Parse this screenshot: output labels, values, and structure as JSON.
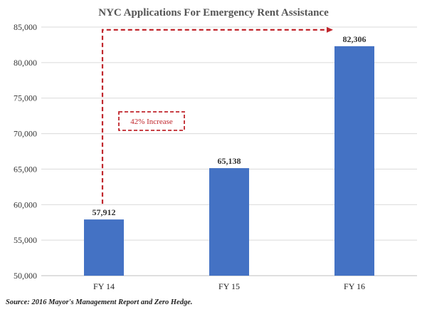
{
  "chart_data": {
    "type": "bar",
    "title": "NYC Applications For Emergency Rent Assistance",
    "categories": [
      "FY 14",
      "FY 15",
      "FY 16"
    ],
    "values": [
      57912,
      65138,
      82306
    ],
    "data_labels": [
      "57,912",
      "65,138",
      "82,306"
    ],
    "xlabel": "",
    "ylabel": "",
    "ylim": [
      50000,
      85000
    ],
    "yticks": [
      50000,
      55000,
      60000,
      65000,
      70000,
      75000,
      80000,
      85000
    ],
    "ytick_labels": [
      "50,000",
      "55,000",
      "60,000",
      "65,000",
      "70,000",
      "75,000",
      "80,000",
      "85,000"
    ],
    "grid": true,
    "legend": "none",
    "bar_color": "#4472c4",
    "annotation": {
      "text": "42% Increase",
      "color": "#c0262c",
      "from_category": "FY 14",
      "to_category": "FY 16"
    },
    "source": "Source:  2016 Mayor's Management Report and Zero Hedge."
  }
}
